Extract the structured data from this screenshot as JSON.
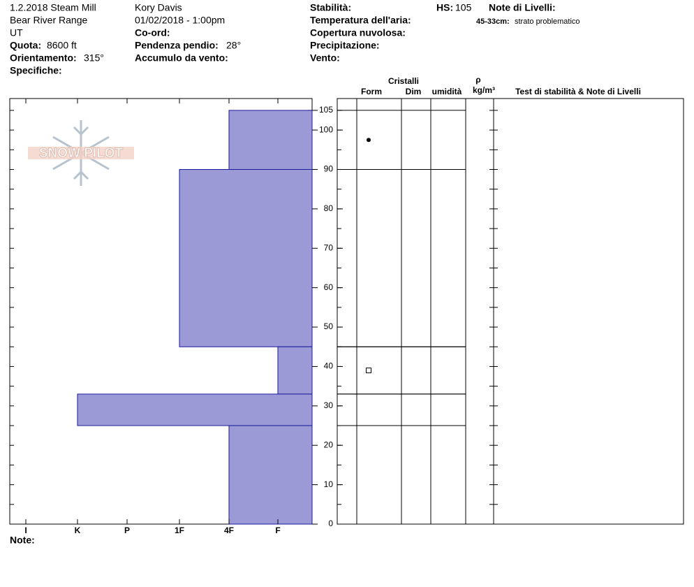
{
  "header": {
    "col1": {
      "location": "1.2.2018 Steam Mill",
      "range": "Bear River Range",
      "state": "UT",
      "elevation_label": "Quota:",
      "elevation": "8600 ft",
      "aspect_label": "Orientamento:",
      "aspect": "315°",
      "specifics_label": "Specifiche:"
    },
    "col2": {
      "observer": "Kory Davis",
      "datetime": "01/02/2018 - 1:00pm",
      "coord_label": "Co-ord:",
      "slope_label": "Pendenza pendio:",
      "slope": "28°",
      "wind_loading_label": "Accumulo da vento:"
    },
    "col3": {
      "stability_label": "Stabilità:",
      "air_temp_label": "Temperatura dell'aria:",
      "sky_label": "Copertura nuvolosa:",
      "precip_label": "Precipitazione:",
      "wind_label": "Vento:"
    },
    "hs_label": "HS:",
    "hs": "105",
    "layer_notes_label": "Note di Livelli:",
    "layer_note_range": "45-33cm:",
    "layer_note_text": "strato problematico"
  },
  "logo": "SNOW PILOT",
  "table_headers": {
    "crystals": "Cristalli",
    "form": "Form",
    "size": "Dim",
    "moisture": "umidità",
    "rho": "ρ",
    "density_unit": "kg/m³",
    "tests": "Test di stabilità & Note di Livelli"
  },
  "notes_label": "Note:",
  "chart_data": {
    "type": "snow-profile",
    "hardness_scale": [
      "I",
      "K",
      "P",
      "1F",
      "4F",
      "F"
    ],
    "layers": [
      {
        "top": 105,
        "bottom": 90,
        "hardness": "4F"
      },
      {
        "top": 90,
        "bottom": 45,
        "hardness": "1F"
      },
      {
        "top": 45,
        "bottom": 33,
        "hardness": "F"
      },
      {
        "top": 33,
        "bottom": 25,
        "hardness": "K"
      },
      {
        "top": 25,
        "bottom": 0,
        "hardness": "4F"
      }
    ],
    "ylim": [
      0,
      108
    ],
    "yticks": [
      0,
      10,
      20,
      30,
      40,
      50,
      60,
      70,
      80,
      90,
      100,
      105
    ],
    "color": "#9b9ad6"
  }
}
